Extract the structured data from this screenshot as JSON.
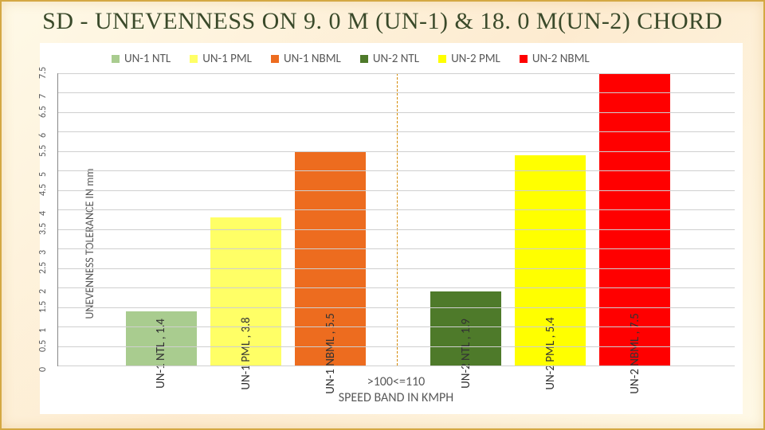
{
  "title": "SD - UNEVENNESS ON 9. 0 M (UN-1) & 18. 0 M(UN-2) CHORD",
  "chart": {
    "type": "bar",
    "ylabel": "UNEVENNESS TOLERANCE IN mm",
    "ylim": [
      0,
      7.5
    ],
    "ytick_step": 0.5,
    "grid_color": "#cfcfcf",
    "background_color": "#ffffff",
    "divider_position_pct": 50,
    "legend": [
      {
        "label": "UN-1 NTL",
        "color": "#a9cc8f"
      },
      {
        "label": "UN-1 PML",
        "color": "#ffff66"
      },
      {
        "label": "UN-1 NBML",
        "color": "#ed6c1f"
      },
      {
        "label": "UN-2 NTL",
        "color": "#4e7a2a"
      },
      {
        "label": "UN-2 PML",
        "color": "#ffff00"
      },
      {
        "label": "UN-2 NBML",
        "color": "#ff0000"
      }
    ],
    "bars": [
      {
        "name": "UN-1 NTL",
        "value": 1.4,
        "color": "#a9cc8f",
        "label": "UN-1 NTL , 1.4",
        "left_pct": 10,
        "width_pct": 10.5
      },
      {
        "name": "UN-1 PML",
        "value": 3.8,
        "color": "#ffff66",
        "label": "UN-1 PML , 3.8",
        "left_pct": 22.5,
        "width_pct": 10.5
      },
      {
        "name": "UN-1 NBML",
        "value": 5.5,
        "color": "#ed6c1f",
        "label": "UN-1 NBML , 5.5",
        "left_pct": 35,
        "width_pct": 10.5
      },
      {
        "name": "UN-2 NTL",
        "value": 1.9,
        "color": "#4e7a2a",
        "label": "UN-2 NTL , 1.9",
        "left_pct": 55,
        "width_pct": 10.5
      },
      {
        "name": "UN-2 PML",
        "value": 5.4,
        "color": "#ffff00",
        "label": "UN-2 PML , 5.4",
        "left_pct": 67.5,
        "width_pct": 10.5
      },
      {
        "name": "UN-2 NBML",
        "value": 7.5,
        "color": "#ff0000",
        "label": "UN-2 NBML , 7.5",
        "left_pct": 80,
        "width_pct": 10.5
      }
    ],
    "x_category_label": ">100<=110",
    "x_axis_label": "SPEED BAND IN KMPH"
  }
}
